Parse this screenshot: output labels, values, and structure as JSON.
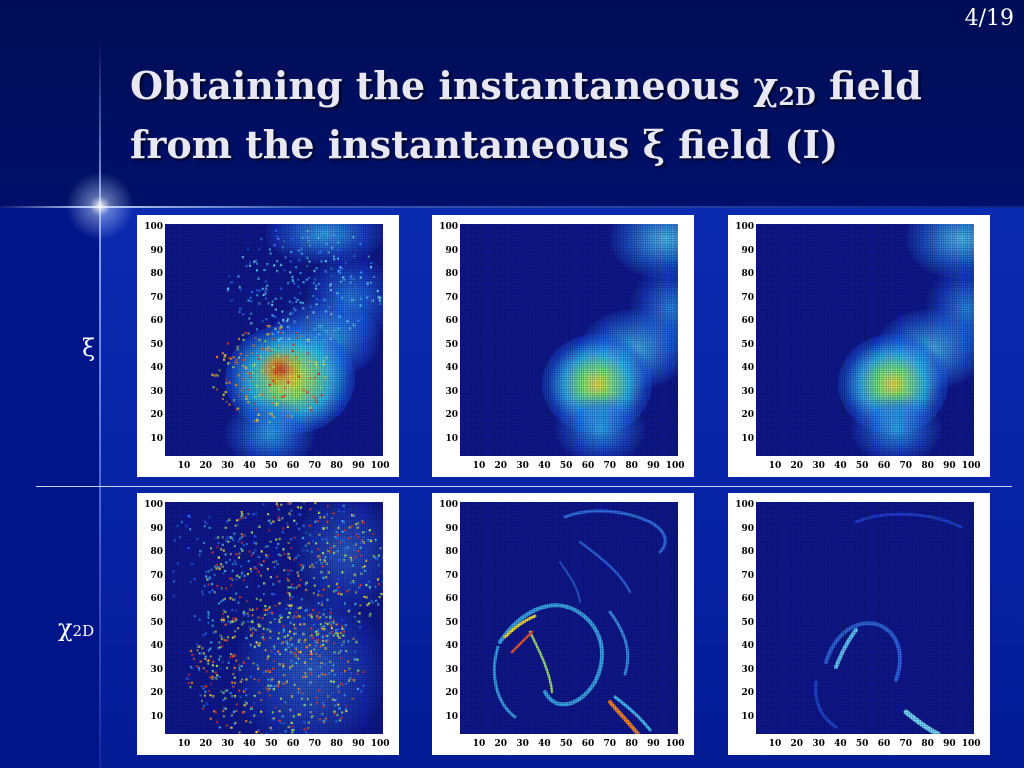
{
  "slide": {
    "page_number": "4/19",
    "title_line1_pre": "Obtaining the instantaneous χ",
    "title_line1_sub": "2D",
    "title_line1_post": " field",
    "title_line2": "from the instantaneous ξ field (I)"
  },
  "row_labels": {
    "xi": "ξ",
    "chi": "χ",
    "chi_sub": "2D"
  },
  "axes": {
    "y_ticks": [
      "100",
      "90",
      "80",
      "70",
      "60",
      "50",
      "40",
      "30",
      "20",
      "10"
    ],
    "x_ticks": [
      "10",
      "20",
      "30",
      "40",
      "50",
      "60",
      "70",
      "80",
      "90",
      "100"
    ]
  },
  "colors": {
    "background": "#00127a",
    "colormap": "jet"
  }
}
